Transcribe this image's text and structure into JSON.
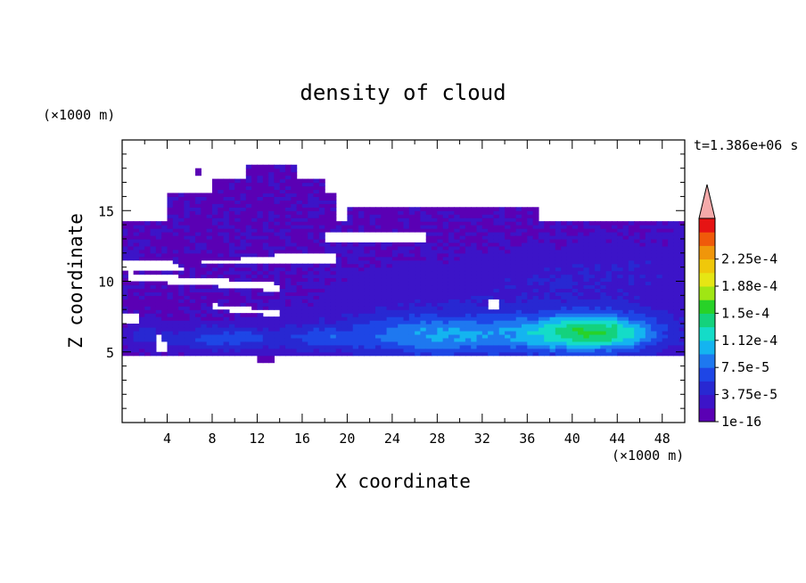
{
  "chart_data": {
    "type": "heatmap",
    "title": "density of cloud",
    "xlabel": "X coordinate",
    "ylabel": "Z coordinate",
    "x_unit": "(×1000 m)",
    "y_unit": "(×1000 m)",
    "time_label": "t=1.386e+06 s",
    "xlim": [
      0,
      50
    ],
    "ylim": [
      0,
      20
    ],
    "x_ticks": [
      "4",
      "8",
      "12",
      "16",
      "20",
      "24",
      "28",
      "32",
      "36",
      "40",
      "44",
      "48"
    ],
    "y_ticks": [
      "5",
      "10",
      "15"
    ],
    "colorbar": {
      "tick_labels": [
        "1e-16",
        "3.75e-5",
        "7.5e-5",
        "1.12e-4",
        "1.5e-4",
        "1.88e-4",
        "2.25e-4"
      ],
      "colors": [
        "#5a00b4",
        "#3c14c8",
        "#2828d2",
        "#1e46e6",
        "#1e78f0",
        "#14b4f0",
        "#14dcc8",
        "#14d27d",
        "#28d228",
        "#a0e614",
        "#e6e614",
        "#f0c80a",
        "#f0960a",
        "#f05a0a",
        "#e61414",
        "#f5aaaa"
      ]
    },
    "regions": [
      {
        "level": 1,
        "note": "broad low-density cloud, x 0–50, z 5–18"
      },
      {
        "level": 4,
        "note": "moderate density cores near z 6, x 7–11, 21–35, 38–46"
      },
      {
        "level": 7,
        "note": "peak density ~1.3e-4 near x 42, z 6.7"
      }
    ]
  }
}
